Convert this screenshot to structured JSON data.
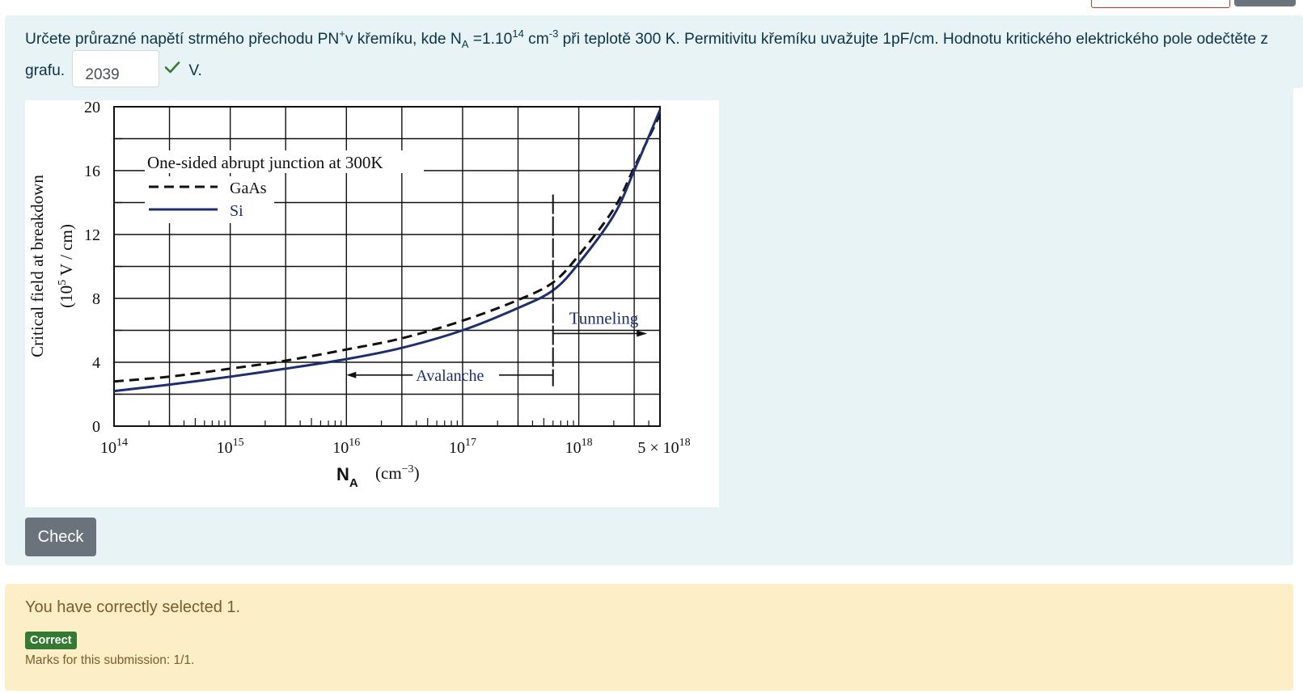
{
  "question": {
    "text_1": "Určete průrazné napětí strmého přechodu PN",
    "sup_plus": "+",
    "text_2": "v křemíku, kde N",
    "sub_a": "A",
    "text_3": " =1.10",
    "sup_exp": "14",
    "text_4": " cm",
    "sup_unit": "-3",
    "text_5": " při teplotě 300 K. Permitivitu křemíku uvažujte 1pF/cm. Hodnotu kritického elektrického pole odečtěte z grafu.",
    "answer_value": "2039",
    "unit": "V."
  },
  "chart_data": {
    "type": "line",
    "x_scale": "log",
    "ylabel": "Critical field at breakdown",
    "ylabel_units": "(10",
    "ylabel_units_sup": "5",
    "ylabel_units_tail": " V / cm)",
    "xlabel": "N",
    "xlabel_sub": "A",
    "xlabel_units": "(cm",
    "xlabel_units_sup": "−3",
    "xlabel_units_tail": ")",
    "xlim": [
      100000000000000.0,
      5e+18
    ],
    "ylim": [
      0,
      20
    ],
    "y_ticks": [
      "0",
      "4",
      "8",
      "12",
      "16",
      "20"
    ],
    "x_ticks": [
      {
        "base": "10",
        "exp": "14"
      },
      {
        "base": "10",
        "exp": "15"
      },
      {
        "base": "10",
        "exp": "16"
      },
      {
        "base": "10",
        "exp": "17"
      },
      {
        "base": "10",
        "exp": "18"
      },
      {
        "base": "5 × 10",
        "exp": "18"
      }
    ],
    "grid": true,
    "legend": {
      "title": "One-sided abrupt junction at 300K",
      "position": "top-left",
      "entries": [
        "GaAs",
        "Si"
      ]
    },
    "annotations": {
      "avalanche": "Avalanche",
      "tunneling": "Tunneling",
      "boundary_x": 6e+17
    },
    "series": [
      {
        "name": "GaAs",
        "style": "dashed",
        "color": "#111111",
        "x": [
          100000000000000.0,
          300000000000000.0,
          1000000000000000.0,
          3000000000000000.0,
          1e+16,
          3e+16,
          1e+17,
          3e+17,
          6e+17,
          1e+18,
          2e+18,
          3e+18,
          5e+18
        ],
        "y": [
          2.8,
          3.1,
          3.6,
          4.1,
          4.8,
          5.5,
          6.6,
          7.9,
          9.0,
          10.7,
          13.6,
          16.2,
          19.5
        ]
      },
      {
        "name": "Si",
        "style": "solid",
        "color": "#1e2f6e",
        "x": [
          100000000000000.0,
          300000000000000.0,
          1000000000000000.0,
          3000000000000000.0,
          1e+16,
          3e+16,
          1e+17,
          3e+17,
          6e+17,
          1e+18,
          2e+18,
          3e+18,
          5e+18
        ],
        "y": [
          2.2,
          2.6,
          3.1,
          3.6,
          4.2,
          4.9,
          6.0,
          7.4,
          8.5,
          10.2,
          13.2,
          16.0,
          19.8
        ]
      }
    ]
  },
  "buttons": {
    "check": "Check"
  },
  "feedback": {
    "message": "You have correctly selected 1.",
    "badge": "Correct",
    "marks": "Marks for this submission: 1/1."
  },
  "colors": {
    "question_bg": "#e7f3f5",
    "feedback_bg": "#fcefc7",
    "correct_badge": "#357a32",
    "check_button": "#6a737b",
    "si_curve": "#1e2f6e"
  }
}
